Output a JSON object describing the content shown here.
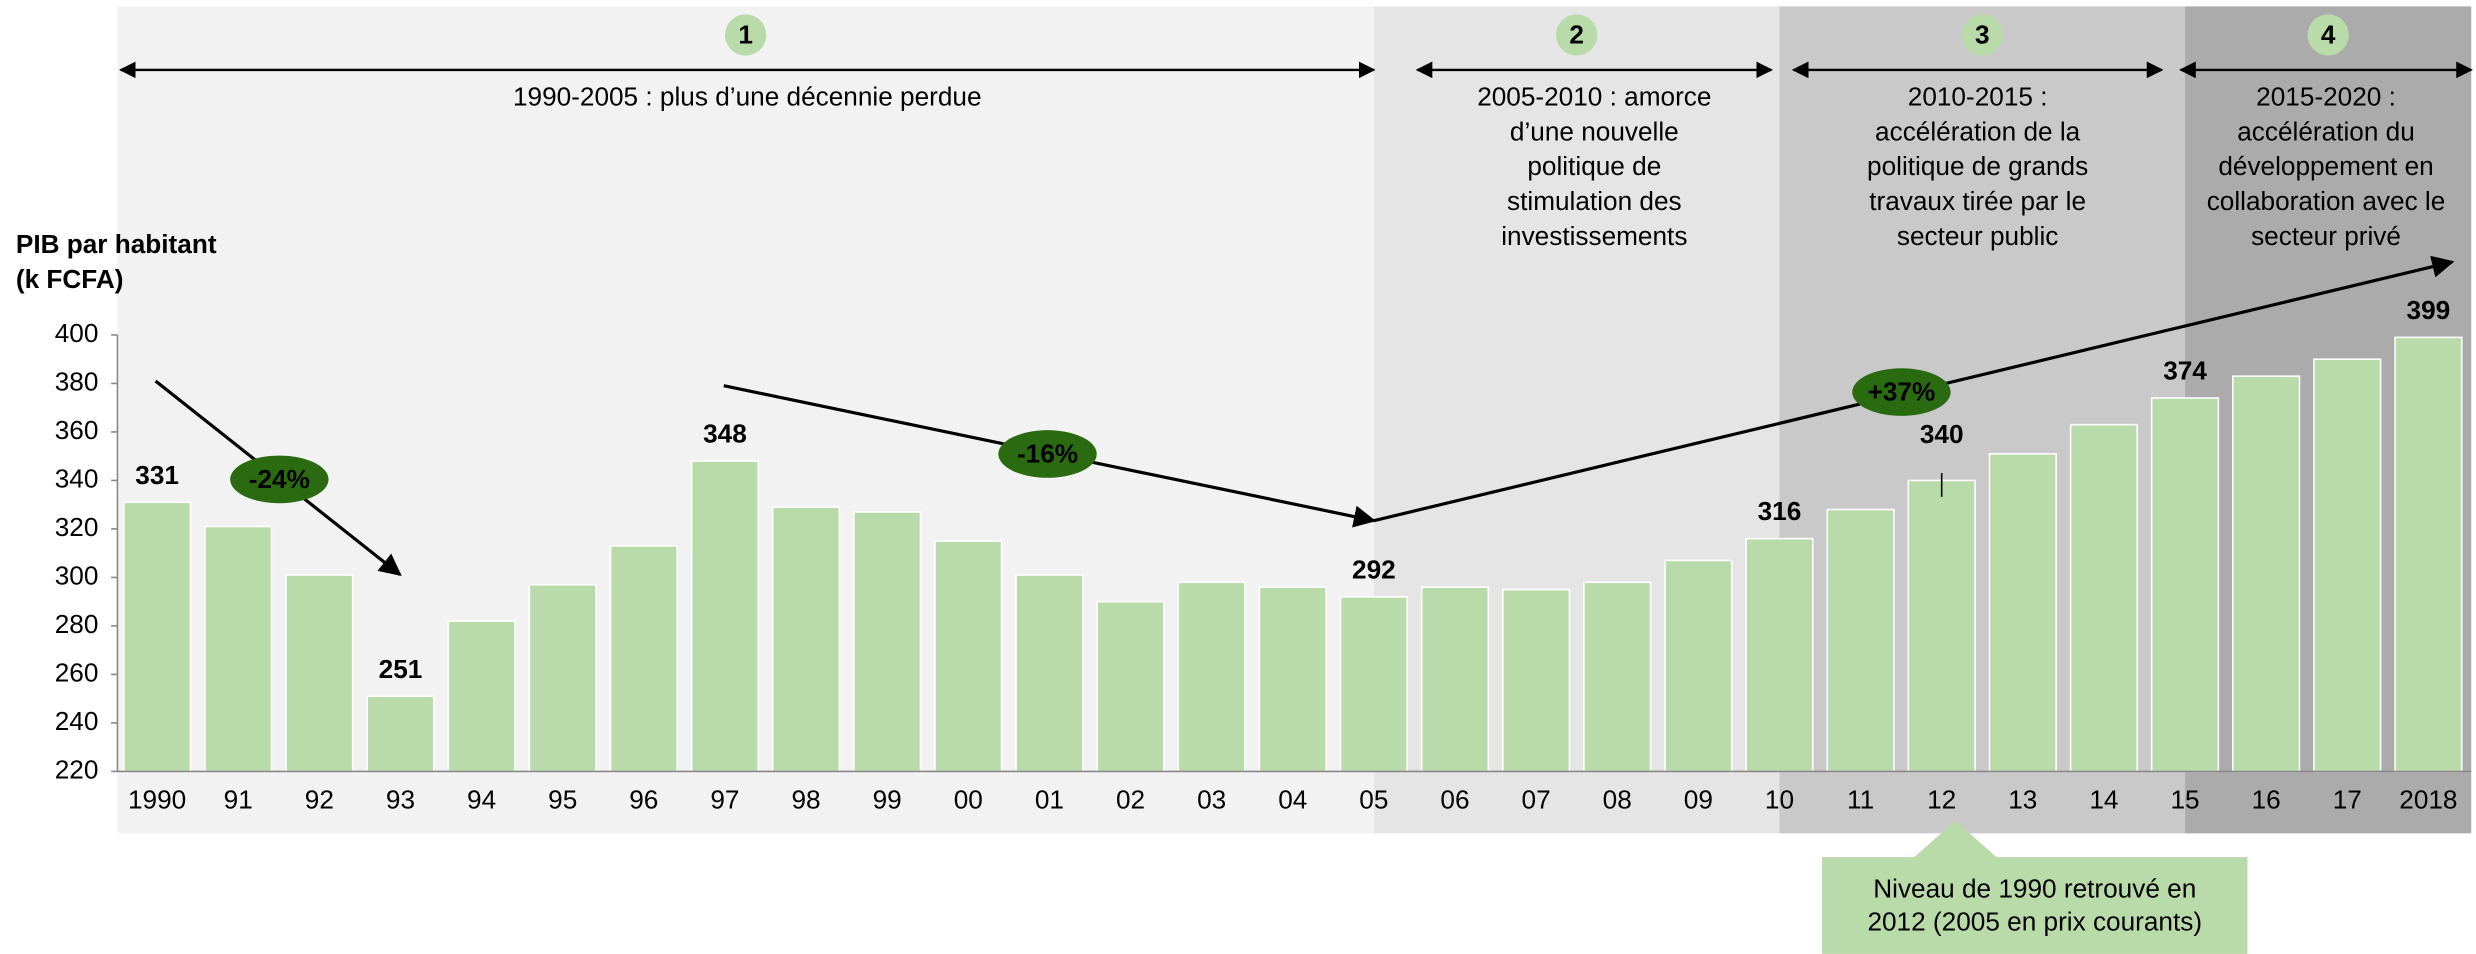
{
  "chart_data": {
    "type": "bar",
    "ylabel": [
      "PIB par habitant",
      "(k FCFA)"
    ],
    "categories": [
      "1990",
      "91",
      "92",
      "93",
      "94",
      "95",
      "96",
      "97",
      "98",
      "99",
      "00",
      "01",
      "02",
      "03",
      "04",
      "05",
      "06",
      "07",
      "08",
      "09",
      "10",
      "11",
      "12",
      "13",
      "14",
      "15",
      "16",
      "17",
      "2018"
    ],
    "values": [
      331,
      321,
      301,
      251,
      282,
      297,
      313,
      348,
      329,
      327,
      315,
      301,
      290,
      298,
      296,
      292,
      296,
      295,
      298,
      307,
      316,
      328,
      340,
      351,
      363,
      374,
      383,
      390,
      399
    ],
    "labeled_indices": [
      0,
      3,
      7,
      15,
      20,
      22,
      25,
      28
    ],
    "color": "#b9dba9",
    "label_color": "#2e6b12",
    "ylim": [
      220,
      400
    ],
    "yticks": [
      220,
      240,
      260,
      280,
      300,
      320,
      340,
      360,
      380,
      400
    ],
    "phases": [
      {
        "number": "1",
        "lines": [
          "1990-2005 : plus d’une décennie perdue"
        ],
        "color": "#f2f2f2"
      },
      {
        "number": "2",
        "lines": [
          "2005-2010 : amorce",
          "d’une nouvelle",
          "politique de",
          "stimulation des",
          "investissements"
        ],
        "color": "#e5e5e5"
      },
      {
        "number": "3",
        "lines": [
          "2010-2015 :",
          "accélération de la",
          "politique de grands",
          "travaux tirée par le",
          "secteur public"
        ],
        "color": "#c9c9c9"
      },
      {
        "number": "4",
        "lines": [
          "2015-2020 :",
          "accélération du",
          "développement en",
          "collaboration avec le",
          "secteur privé"
        ],
        "color": "#ababab"
      }
    ],
    "trends": [
      "-24%",
      "-16%",
      "+37%"
    ],
    "callout": [
      "Niveau de 1990 retrouvé en",
      "2012 (2005 en prix courants)"
    ]
  }
}
